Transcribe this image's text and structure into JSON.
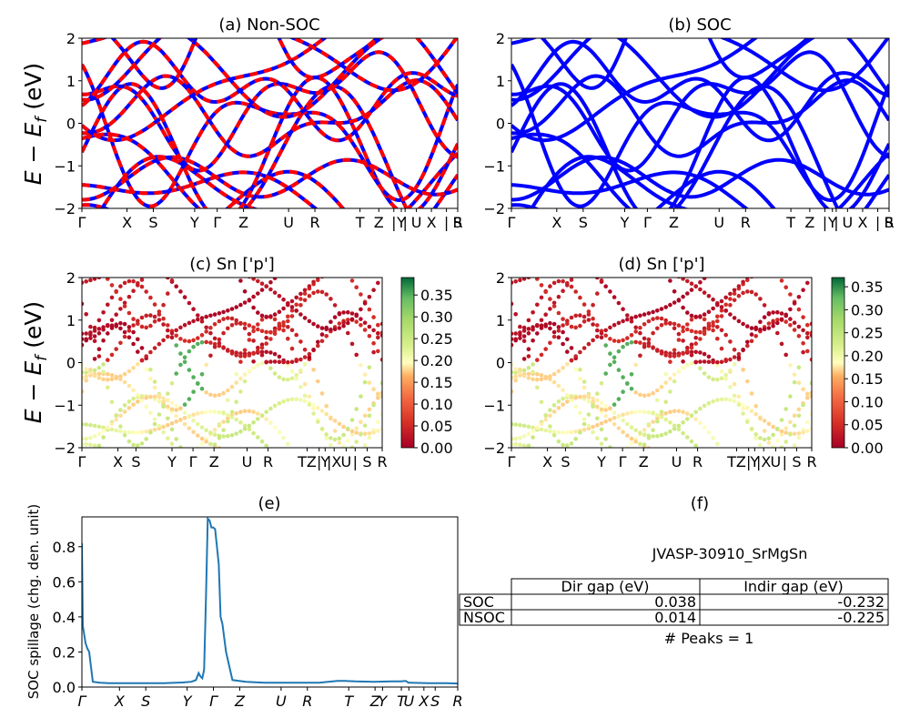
{
  "figure": {
    "ylabel_main": "E − E",
    "ylabel_sub": "f",
    "ylabel_unit": " (eV)",
    "kpath": [
      "Γ",
      "X",
      "S",
      "Y",
      "Γ",
      "Z",
      "U",
      "R",
      "T",
      "Z|Y",
      "|",
      "U",
      "X|S",
      "R"
    ]
  },
  "chart_data": [
    {
      "id": "a",
      "type": "line",
      "title": "(a) Non-SOC",
      "ylim": [
        -2,
        2
      ],
      "yticks": [
        -2,
        -1,
        0,
        1,
        2
      ],
      "xticks": [
        "Γ",
        "X",
        "S",
        "Y",
        "Γ",
        "Z",
        "U",
        "R",
        "T",
        "Z",
        "|",
        "Y",
        "|",
        "U",
        "X",
        "|",
        "S",
        "R"
      ],
      "series": [
        {
          "color": "#0000ff",
          "style": "solid"
        },
        {
          "color": "#ff0000",
          "style": "dashed"
        }
      ]
    },
    {
      "id": "b",
      "type": "line",
      "title": "(b) SOC",
      "ylim": [
        -2,
        2
      ],
      "yticks": [
        -2,
        -1,
        0,
        1,
        2
      ],
      "xticks": [
        "Γ",
        "X",
        "S",
        "Y",
        "Γ",
        "Z",
        "U",
        "R",
        "T",
        "Z",
        "|",
        "Y",
        "|",
        "U",
        "X",
        "|",
        "S",
        "R"
      ],
      "series": [
        {
          "color": "#0000ff",
          "style": "solid"
        }
      ]
    },
    {
      "id": "c",
      "type": "scatter",
      "title": "(c)  Sn ['p']",
      "ylim": [
        -2,
        2
      ],
      "yticks": [
        -2,
        -1,
        0,
        1,
        2
      ],
      "xticks": [
        "Γ",
        "X",
        "S",
        "Y",
        "Γ",
        "Z",
        "U",
        "R",
        "TZ",
        "|",
        "Y",
        "|X",
        "U",
        "|",
        "S",
        "R"
      ],
      "colorbar": {
        "ticks": [
          "0.00",
          "0.05",
          "0.10",
          "0.15",
          "0.20",
          "0.25",
          "0.30",
          "0.35"
        ],
        "vmin": 0,
        "vmax": 0.39,
        "cmap": "RdYlGn"
      }
    },
    {
      "id": "d",
      "type": "scatter",
      "title": "(d) Sn ['p']",
      "ylim": [
        -2,
        2
      ],
      "yticks": [
        -2,
        -1,
        0,
        1,
        2
      ],
      "xticks": [
        "Γ",
        "X",
        "S",
        "Y",
        "Γ",
        "Z",
        "U",
        "R",
        "TZ",
        "|",
        "Y",
        "|X",
        "U",
        "|",
        "S",
        "R"
      ],
      "colorbar": {
        "ticks": [
          "0.00",
          "0.05",
          "0.10",
          "0.15",
          "0.20",
          "0.25",
          "0.30",
          "0.35"
        ],
        "vmin": 0,
        "vmax": 0.37,
        "cmap": "RdYlGn"
      }
    },
    {
      "id": "e",
      "type": "line",
      "title": "(e)",
      "ylabel": "SOC spillage (chg. den. unit)",
      "ylim": [
        0,
        0.97
      ],
      "yticks": [
        "0.0",
        "0.2",
        "0.4",
        "0.6",
        "0.8"
      ],
      "xticks": [
        "Γ",
        "X",
        "S",
        "Y",
        "Γ",
        "Z",
        "U",
        "R",
        "T",
        "Z",
        "Y",
        "T",
        "U",
        "X",
        "S",
        "R"
      ],
      "series": [
        {
          "color": "#1f77b4",
          "x": [
            0,
            0.4,
            1,
            2.5,
            4,
            6,
            7,
            8,
            12,
            20,
            30,
            40,
            50,
            60,
            70,
            80,
            90,
            100,
            110,
            120,
            125,
            128,
            130,
            132,
            134,
            136,
            138,
            140,
            142,
            144,
            146,
            148,
            150,
            152,
            154,
            158,
            165,
            180,
            200,
            220,
            240,
            260,
            280,
            285,
            290,
            300,
            320,
            340,
            350,
            355,
            358,
            360,
            380,
            400,
            412
          ],
          "y": [
            0.82,
            0.65,
            0.35,
            0.3,
            0.25,
            0.22,
            0.21,
            0.2,
            0.03,
            0.025,
            0.022,
            0.022,
            0.022,
            0.022,
            0.022,
            0.022,
            0.022,
            0.024,
            0.026,
            0.03,
            0.04,
            0.08,
            0.06,
            0.05,
            0.1,
            0.5,
            0.96,
            0.95,
            0.91,
            0.91,
            0.9,
            0.8,
            0.7,
            0.4,
            0.36,
            0.2,
            0.04,
            0.03,
            0.025,
            0.025,
            0.025,
            0.025,
            0.035,
            0.035,
            0.035,
            0.032,
            0.03,
            0.032,
            0.032,
            0.035,
            0.025,
            0.025,
            0.022,
            0.022,
            0.02
          ]
        }
      ]
    }
  ],
  "panel_f": {
    "title": "(f)",
    "material": "JVASP-30910_SrMgSn",
    "col_headers": [
      "Dir gap (eV)",
      "Indir gap (eV)"
    ],
    "rows": [
      {
        "label": "SOC",
        "dir": "0.038",
        "indir": "-0.232"
      },
      {
        "label": "NSOC",
        "dir": "0.014",
        "indir": "-0.225"
      }
    ],
    "peaks": "# Peaks = 1"
  }
}
